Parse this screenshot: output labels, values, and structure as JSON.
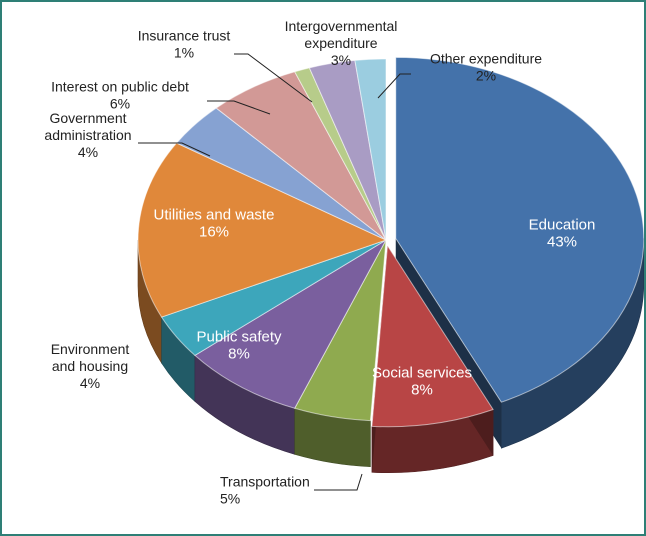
{
  "chart_data": {
    "type": "pie",
    "title": "",
    "style": "3d-exploded",
    "categories": [
      "Education",
      "Social services",
      "Transportation",
      "Public safety",
      "Environment and housing",
      "Utilities and waste",
      "Government administration",
      "Interest on public debt",
      "Insurance trust",
      "Intergovernmental expenditure",
      "Other expenditure"
    ],
    "values": [
      43,
      8,
      5,
      8,
      4,
      16,
      4,
      6,
      1,
      3,
      2
    ],
    "colors": [
      "#4472aa",
      "#b84545",
      "#8faa4f",
      "#7a5f9e",
      "#3da6bb",
      "#e0883a",
      "#86a2d2",
      "#d29996",
      "#b7cc8a",
      "#a99cc4",
      "#9bcde0"
    ],
    "labels": [
      {
        "name": "Education",
        "pct": "43%"
      },
      {
        "name": "Social services",
        "pct": "8%"
      },
      {
        "name": "Transportation",
        "pct": "5%"
      },
      {
        "name": "Public safety",
        "pct": "8%"
      },
      {
        "name": "Environment\nand housing",
        "pct": "4%"
      },
      {
        "name": "Utilities and waste",
        "pct": "16%"
      },
      {
        "name": "Government\nadministration",
        "pct": "4%"
      },
      {
        "name": "Interest on public debt",
        "pct": "6%"
      },
      {
        "name": "Insurance trust",
        "pct": "1%"
      },
      {
        "name": "Intergovernmental\nexpenditure",
        "pct": "3%"
      },
      {
        "name": "Other expenditure",
        "pct": "2%"
      }
    ],
    "frame_color": "#2e7f76"
  }
}
